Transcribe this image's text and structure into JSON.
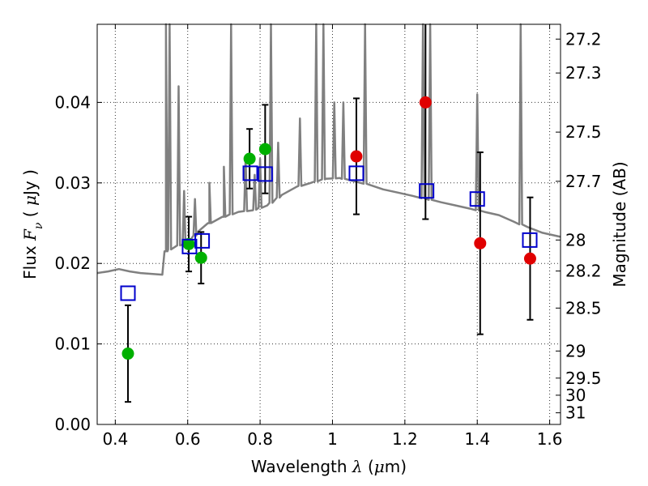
{
  "chart_data": {
    "type": "scatter",
    "xlabel": {
      "prefix": "Wavelength  ",
      "symbol": "λ",
      "suffix": " (",
      "mu": "μ",
      "unit": "m)"
    },
    "ylabel": {
      "prefix": "Flux  ",
      "symbol": "F",
      "subscript": "ν",
      "suffix": "  ( ",
      "mu": "μ",
      "unit": "Jy )"
    },
    "y2label": "Magnitude (AB)",
    "xlim": [
      0.35,
      1.63
    ],
    "ylim": [
      0.0,
      0.0497
    ],
    "grid": true,
    "xticks": [
      {
        "value": 0.4,
        "label": "0.4"
      },
      {
        "value": 0.6,
        "label": "0.6"
      },
      {
        "value": 0.8,
        "label": "0.8"
      },
      {
        "value": 1.0,
        "label": "1"
      },
      {
        "value": 1.2,
        "label": "1.2"
      },
      {
        "value": 1.4,
        "label": "1.4"
      },
      {
        "value": 1.6,
        "label": "1.6"
      }
    ],
    "yticks": [
      {
        "value": 0.0,
        "label": "0.00"
      },
      {
        "value": 0.01,
        "label": "0.01"
      },
      {
        "value": 0.02,
        "label": "0.02"
      },
      {
        "value": 0.03,
        "label": "0.03"
      },
      {
        "value": 0.04,
        "label": "0.04"
      }
    ],
    "y2ticks": [
      {
        "label": "27.2",
        "mag": 27.2
      },
      {
        "label": "27.3",
        "mag": 27.3
      },
      {
        "label": "27.5",
        "mag": 27.5
      },
      {
        "label": "27.7",
        "mag": 27.7
      },
      {
        "label": "28",
        "mag": 28.0
      },
      {
        "label": "28.2",
        "mag": 28.2
      },
      {
        "label": "28.5",
        "mag": 28.5
      },
      {
        "label": "29",
        "mag": 29.0
      },
      {
        "label": "29.5",
        "mag": 29.5
      },
      {
        "label": "30",
        "mag": 30.0
      },
      {
        "label": "31",
        "mag": 31.0
      }
    ],
    "colors": {
      "model": "#808080",
      "green": "#00b000",
      "red": "#e00000",
      "square": "#0000cc",
      "errorbar": "#000000"
    },
    "model_spectrum": {
      "continuum": [
        [
          0.35,
          0.0188
        ],
        [
          0.38,
          0.019
        ],
        [
          0.41,
          0.0193
        ],
        [
          0.44,
          0.019
        ],
        [
          0.47,
          0.0188
        ],
        [
          0.5,
          0.0187
        ],
        [
          0.53,
          0.0186
        ],
        [
          0.54,
          0.0215
        ],
        [
          0.57,
          0.0222
        ],
        [
          0.6,
          0.0224
        ],
        [
          0.63,
          0.024
        ],
        [
          0.66,
          0.025
        ],
        [
          0.7,
          0.0258
        ],
        [
          0.74,
          0.0264
        ],
        [
          0.78,
          0.0266
        ],
        [
          0.82,
          0.0272
        ],
        [
          0.86,
          0.0285
        ],
        [
          0.9,
          0.0295
        ],
        [
          0.94,
          0.03
        ],
        [
          0.98,
          0.0305
        ],
        [
          1.02,
          0.0306
        ],
        [
          1.06,
          0.0302
        ],
        [
          1.1,
          0.0298
        ],
        [
          1.14,
          0.0292
        ],
        [
          1.18,
          0.0288
        ],
        [
          1.22,
          0.0284
        ],
        [
          1.26,
          0.028
        ],
        [
          1.3,
          0.0276
        ],
        [
          1.34,
          0.0272
        ],
        [
          1.38,
          0.0268
        ],
        [
          1.42,
          0.0264
        ],
        [
          1.46,
          0.026
        ],
        [
          1.5,
          0.0252
        ],
        [
          1.54,
          0.0245
        ],
        [
          1.58,
          0.0238
        ],
        [
          1.63,
          0.0233
        ]
      ],
      "lines": [
        [
          0.54,
          0.0497
        ],
        [
          0.55,
          0.0497
        ],
        [
          0.575,
          0.042
        ],
        [
          0.59,
          0.029
        ],
        [
          0.62,
          0.028
        ],
        [
          0.66,
          0.03
        ],
        [
          0.7,
          0.032
        ],
        [
          0.72,
          0.0497
        ],
        [
          0.76,
          0.033
        ],
        [
          0.785,
          0.031
        ],
        [
          0.8,
          0.033
        ],
        [
          0.83,
          0.0497
        ],
        [
          0.85,
          0.035
        ],
        [
          0.91,
          0.038
        ],
        [
          0.955,
          0.0497
        ],
        [
          0.975,
          0.0497
        ],
        [
          1.005,
          0.04
        ],
        [
          1.03,
          0.04
        ],
        [
          1.09,
          0.0497
        ],
        [
          1.25,
          0.0497
        ],
        [
          1.27,
          0.0497
        ],
        [
          1.4,
          0.041
        ],
        [
          1.52,
          0.0497
        ]
      ]
    },
    "series": [
      {
        "marker": "circle",
        "color": "green",
        "points": [
          {
            "x": 0.435,
            "y": 0.0088,
            "err": 0.006
          },
          {
            "x": 0.603,
            "y": 0.0224,
            "err": 0.0034
          },
          {
            "x": 0.637,
            "y": 0.0207,
            "err": 0.0032
          },
          {
            "x": 0.771,
            "y": 0.033,
            "err": 0.0037
          },
          {
            "x": 0.814,
            "y": 0.0342,
            "err": 0.0055
          }
        ]
      },
      {
        "marker": "circle",
        "color": "red",
        "points": [
          {
            "x": 1.066,
            "y": 0.0333,
            "err": 0.0072
          },
          {
            "x": 1.257,
            "y": 0.04,
            "err": 0.0145
          },
          {
            "x": 1.408,
            "y": 0.0225,
            "err": 0.0113
          },
          {
            "x": 1.546,
            "y": 0.0206,
            "err": 0.0076
          }
        ]
      },
      {
        "marker": "square",
        "color": "square",
        "points": [
          {
            "x": 0.435,
            "y": 0.0163
          },
          {
            "x": 0.605,
            "y": 0.0221
          },
          {
            "x": 0.64,
            "y": 0.0228
          },
          {
            "x": 0.773,
            "y": 0.0312
          },
          {
            "x": 0.814,
            "y": 0.0311
          },
          {
            "x": 1.066,
            "y": 0.0312
          },
          {
            "x": 1.26,
            "y": 0.029
          },
          {
            "x": 1.4,
            "y": 0.028
          },
          {
            "x": 1.545,
            "y": 0.0229
          }
        ]
      }
    ]
  }
}
